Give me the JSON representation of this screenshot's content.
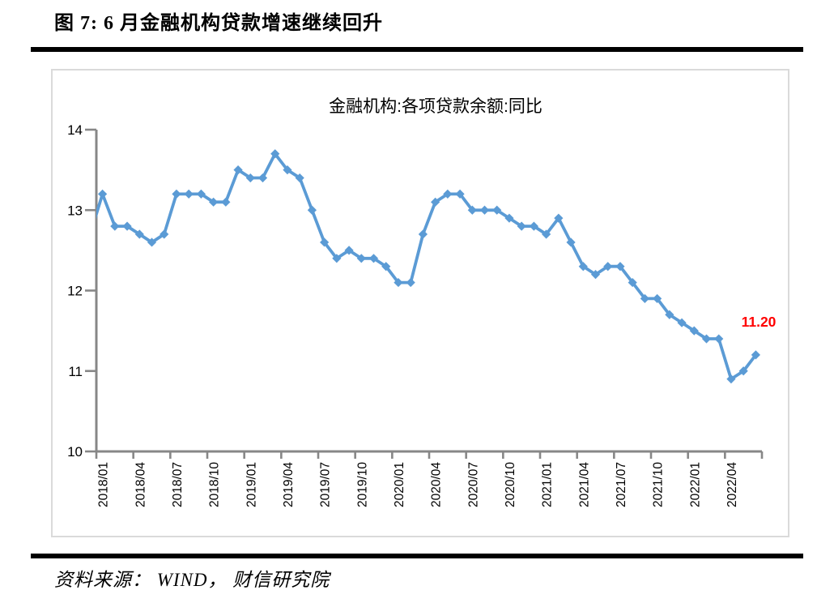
{
  "figure": {
    "title": "图 7:  6 月金融机构贷款增速继续回升"
  },
  "source": {
    "text": "资料来源：  WIND，  财信研究院"
  },
  "chart_data": {
    "type": "line",
    "title": "金融机构:各项贷款余额:同比",
    "x": [
      "2018/01",
      "2018/02",
      "2018/03",
      "2018/04",
      "2018/05",
      "2018/06",
      "2018/07",
      "2018/08",
      "2018/09",
      "2018/10",
      "2018/11",
      "2018/12",
      "2019/01",
      "2019/02",
      "2019/03",
      "2019/04",
      "2019/05",
      "2019/06",
      "2019/07",
      "2019/08",
      "2019/09",
      "2019/10",
      "2019/11",
      "2019/12",
      "2020/01",
      "2020/02",
      "2020/03",
      "2020/04",
      "2020/05",
      "2020/06",
      "2020/07",
      "2020/08",
      "2020/09",
      "2020/10",
      "2020/11",
      "2020/12",
      "2021/01",
      "2021/02",
      "2021/03",
      "2021/04",
      "2021/05",
      "2021/06",
      "2021/07",
      "2021/08",
      "2021/09",
      "2021/10",
      "2021/11",
      "2021/12",
      "2022/01",
      "2022/02",
      "2022/03",
      "2022/04",
      "2022/05",
      "2022/06"
    ],
    "values": [
      13.2,
      12.8,
      12.8,
      12.7,
      12.6,
      12.7,
      13.2,
      13.2,
      13.2,
      13.1,
      13.1,
      13.5,
      13.4,
      13.4,
      13.7,
      13.5,
      13.4,
      13.0,
      12.6,
      12.4,
      12.5,
      12.4,
      12.4,
      12.3,
      12.1,
      12.1,
      12.7,
      13.1,
      13.2,
      13.2,
      13.0,
      13.0,
      13.0,
      12.9,
      12.8,
      12.8,
      12.7,
      12.9,
      12.6,
      12.3,
      12.2,
      12.3,
      12.3,
      12.1,
      11.9,
      11.9,
      11.7,
      11.6,
      11.5,
      11.4,
      11.4,
      10.9,
      11.0,
      11.2
    ],
    "leading_clipped_value": 12.7,
    "ylim": [
      10,
      14
    ],
    "yticks": [
      10,
      11,
      12,
      13,
      14
    ],
    "x_label_interval": 3,
    "x_tick_interval": 3,
    "xlabel": "",
    "ylabel": "",
    "grid": false,
    "legend": false,
    "last_value_label": {
      "text": "11.20",
      "color": "#FF0000"
    },
    "line_color": "#5B9BD5",
    "axis_color": "#878787",
    "text_color": "#000000"
  }
}
